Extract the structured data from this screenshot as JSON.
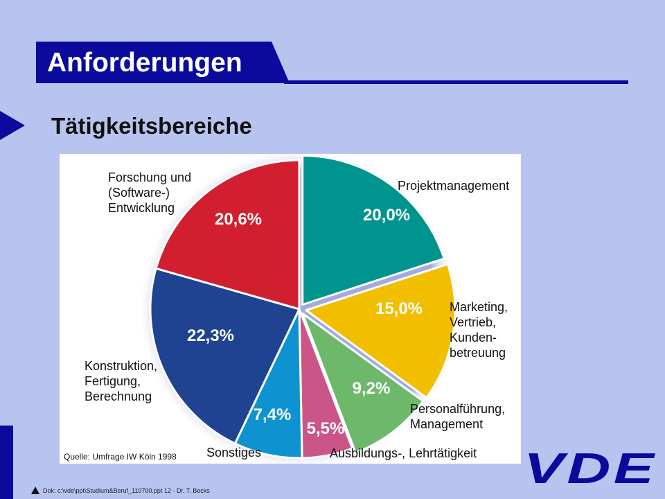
{
  "slide": {
    "title": "Anforderungen",
    "subtitle": "Tätigkeitsbereiche",
    "footer": "Dok: c:\\vde\\ppt\\Studium&Beruf_110700.ppt 12 - Dr. T. Becks",
    "logo_text": "VDE"
  },
  "colors": {
    "background": "#b8c4f0",
    "accent": "#0a0a9c"
  },
  "chart_data": {
    "type": "pie",
    "source": "Quelle: Umfrage IW Köln 1998",
    "slices": [
      {
        "value_label": "20,0%",
        "value": 20.0,
        "label_lines": [
          "Projektmanagement"
        ],
        "color": "#00948f"
      },
      {
        "value_label": "15,0%",
        "value": 15.0,
        "label_lines": [
          "Marketing,",
          "Vertrieb,",
          "Kunden-",
          "betreuung"
        ],
        "color": "#f2be00"
      },
      {
        "value_label": "9,2%",
        "value": 9.2,
        "label_lines": [
          "Personalführung,",
          "Management"
        ],
        "color": "#6db86b"
      },
      {
        "value_label": "5,5%",
        "value": 5.5,
        "label_lines": [
          "Ausbildungs-, Lehrtätigkeit"
        ],
        "color": "#cc5588"
      },
      {
        "value_label": "7,4%",
        "value": 7.4,
        "label_lines": [
          "Sonstiges"
        ],
        "color": "#0f93d0"
      },
      {
        "value_label": "22,3%",
        "value": 22.3,
        "label_lines": [
          "Konstruktion,",
          "Fertigung,",
          "Berechnung"
        ],
        "color": "#1f4391"
      },
      {
        "value_label": "20,6%",
        "value": 20.6,
        "label_lines": [
          "Forschung und",
          "(Software-)",
          "Entwicklung"
        ],
        "color": "#d21f30"
      }
    ]
  }
}
